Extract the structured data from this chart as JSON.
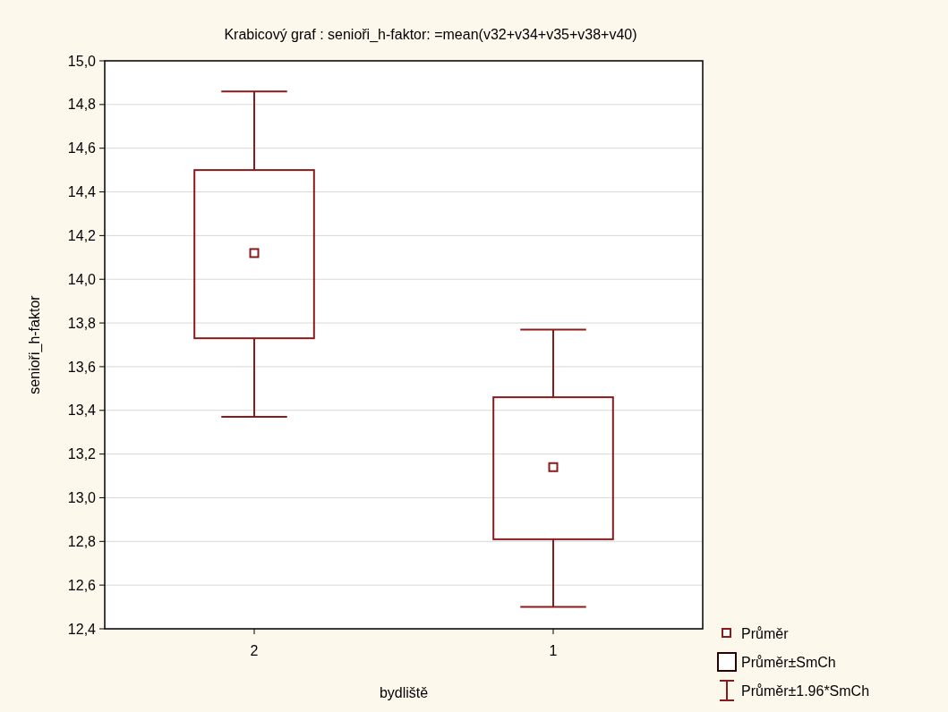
{
  "chart_data": {
    "type": "box",
    "title": "Krabicový  graf :   senioři_h-faktor: =mean(v32+v34+v35+v38+v40)",
    "xlabel": "bydliště",
    "ylabel": "senioři_h-faktor",
    "categories": [
      "2",
      "1"
    ],
    "series": [
      {
        "color": "#8b1a1a",
        "boxes": [
          {
            "low": 13.37,
            "q1": 13.73,
            "median": 14.12,
            "q3": 14.5,
            "high": 14.86
          },
          {
            "low": 12.5,
            "q1": 12.81,
            "median": 13.14,
            "q3": 13.46,
            "high": 13.77
          }
        ]
      }
    ],
    "ylim": [
      12.4,
      15.0
    ],
    "yticks": [
      {
        "value": 12.4,
        "label": "12,4"
      },
      {
        "value": 12.6,
        "label": "12,6"
      },
      {
        "value": 12.8,
        "label": "12,8"
      },
      {
        "value": 13.0,
        "label": "13,0"
      },
      {
        "value": 13.2,
        "label": "13,2"
      },
      {
        "value": 13.4,
        "label": "13,4"
      },
      {
        "value": 13.6,
        "label": "13,6"
      },
      {
        "value": 13.8,
        "label": "13,8"
      },
      {
        "value": 14.0,
        "label": "14,0"
      },
      {
        "value": 14.2,
        "label": "14,2"
      },
      {
        "value": 14.4,
        "label": "14,4"
      },
      {
        "value": 14.6,
        "label": "14,6"
      },
      {
        "value": 14.8,
        "label": "14,8"
      },
      {
        "value": 15.0,
        "label": "15,0"
      }
    ],
    "grid": "y",
    "annotations": [
      "Průměr",
      "Průměr±SmCh",
      "Průměr±1.96*SmCh"
    ]
  }
}
